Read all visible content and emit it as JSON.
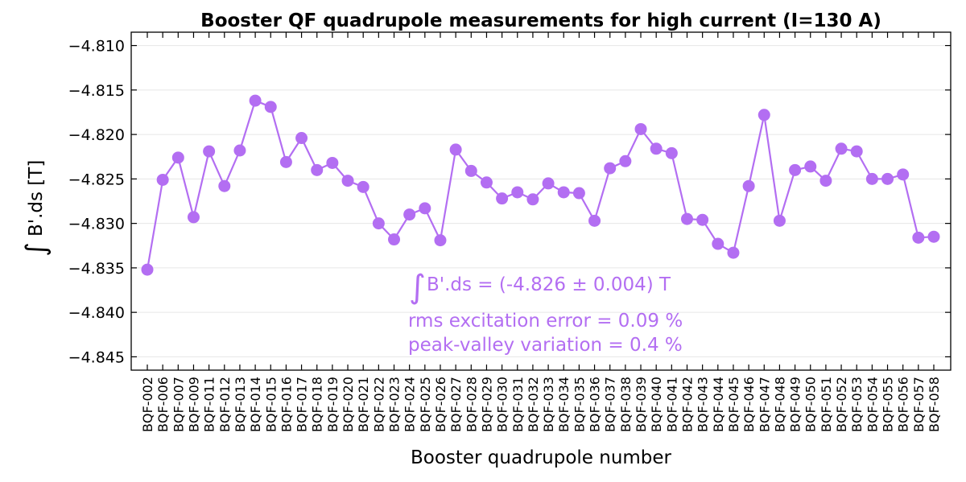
{
  "chart_data": {
    "type": "line",
    "title": "Booster QF quadrupole measurements for high current (I=130 A)",
    "xlabel": "Booster quadrupole number",
    "ylabel": "B'.ds [T]",
    "ylabel_integral_symbol": "∫",
    "ylim": [
      -4.8465,
      -4.8085
    ],
    "yticks": [
      -4.81,
      -4.815,
      -4.82,
      -4.825,
      -4.83,
      -4.835,
      -4.84,
      -4.845
    ],
    "ytick_labels": [
      "−4.810",
      "−4.815",
      "−4.820",
      "−4.825",
      "−4.830",
      "−4.835",
      "−4.840",
      "−4.845"
    ],
    "grid": "horizontal",
    "color": "#b36ef2",
    "categories": [
      "BQF-002",
      "BQF-006",
      "BQF-007",
      "BQF-009",
      "BQF-011",
      "BQF-012",
      "BQF-013",
      "BQF-014",
      "BQF-015",
      "BQF-016",
      "BQF-017",
      "BQF-018",
      "BQF-019",
      "BQF-020",
      "BQF-021",
      "BQF-022",
      "BQF-023",
      "BQF-024",
      "BQF-025",
      "BQF-026",
      "BQF-027",
      "BQF-028",
      "BQF-029",
      "BQF-030",
      "BQF-031",
      "BQF-032",
      "BQF-033",
      "BQF-034",
      "BQF-035",
      "BQF-036",
      "BQF-037",
      "BQF-038",
      "BQF-039",
      "BQF-040",
      "BQF-041",
      "BQF-042",
      "BQF-043",
      "BQF-044",
      "BQF-045",
      "BQF-046",
      "BQF-047",
      "BQF-048",
      "BQF-049",
      "BQF-050",
      "BQF-051",
      "BQF-052",
      "BQF-053",
      "BQF-054",
      "BQF-055",
      "BQF-056",
      "BQF-057",
      "BQF-058"
    ],
    "values": [
      -4.8352,
      -4.8251,
      -4.8226,
      -4.8293,
      -4.8219,
      -4.8258,
      -4.8218,
      -4.8162,
      -4.8169,
      -4.8231,
      -4.8204,
      -4.824,
      -4.8232,
      -4.8252,
      -4.8259,
      -4.83,
      -4.8318,
      -4.829,
      -4.8283,
      -4.8319,
      -4.8217,
      -4.8241,
      -4.8254,
      -4.8272,
      -4.8265,
      -4.8273,
      -4.8255,
      -4.8265,
      -4.8266,
      -4.8297,
      -4.8238,
      -4.823,
      -4.8194,
      -4.8216,
      -4.8221,
      -4.8295,
      -4.8296,
      -4.8323,
      -4.8333,
      -4.8258,
      -4.8178,
      -4.8297,
      -4.824,
      -4.8236,
      -4.8252,
      -4.8216,
      -4.8219,
      -4.825,
      -4.825,
      -4.8245,
      -4.8316,
      -4.8315
    ],
    "annotations": {
      "integral_symbol": "∫",
      "mean": "B'.ds = (-4.826 ± 0.004) T",
      "rms": "rms excitation error = 0.09 %",
      "peak_valley": "peak-valley variation = 0.4 %"
    }
  }
}
